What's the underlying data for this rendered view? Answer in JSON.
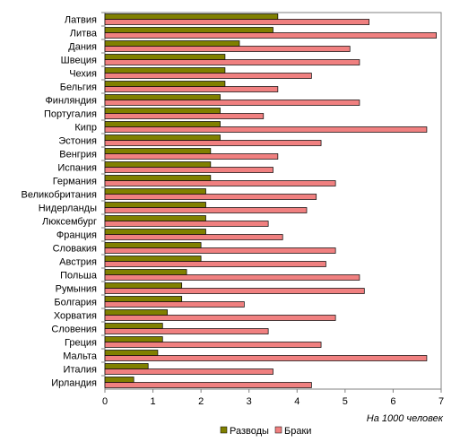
{
  "chart_data": {
    "type": "bar",
    "orientation": "horizontal",
    "categories": [
      "Латвия",
      "Литва",
      "Дания",
      "Швеция",
      "Чехия",
      "Бельгия",
      "Финляндия",
      "Португалия",
      "Кипр",
      "Эстония",
      "Венгрия",
      "Испания",
      "Германия",
      "Великобритания",
      "Нидерланды",
      "Люксембург",
      "Франция",
      "Словакия",
      "Австрия",
      "Польша",
      "Румыния",
      "Болгария",
      "Хорватия",
      "Словения",
      "Греция",
      "Мальта",
      "Италия",
      "Ирландия"
    ],
    "series": [
      {
        "name": "Разводы",
        "color": "#808000",
        "values": [
          3.6,
          3.5,
          2.8,
          2.5,
          2.5,
          2.5,
          2.4,
          2.4,
          2.4,
          2.4,
          2.2,
          2.2,
          2.2,
          2.1,
          2.1,
          2.1,
          2.1,
          2.0,
          2.0,
          1.7,
          1.6,
          1.6,
          1.3,
          1.2,
          1.2,
          1.1,
          0.9,
          0.6
        ]
      },
      {
        "name": "Браки",
        "color": "#f08080",
        "values": [
          5.5,
          6.9,
          5.1,
          5.3,
          4.3,
          3.6,
          5.3,
          3.3,
          6.7,
          4.5,
          3.6,
          3.5,
          4.8,
          4.4,
          4.2,
          3.4,
          3.7,
          4.8,
          4.6,
          5.3,
          5.4,
          2.9,
          4.8,
          3.4,
          4.5,
          6.7,
          3.5,
          4.3
        ]
      }
    ],
    "xlim": [
      0,
      7
    ],
    "xticks": [
      "0",
      "1",
      "2",
      "3",
      "4",
      "5",
      "6",
      "7"
    ],
    "xlabel": "На 1000 человек",
    "grid": false,
    "legend_position": "bottom"
  }
}
